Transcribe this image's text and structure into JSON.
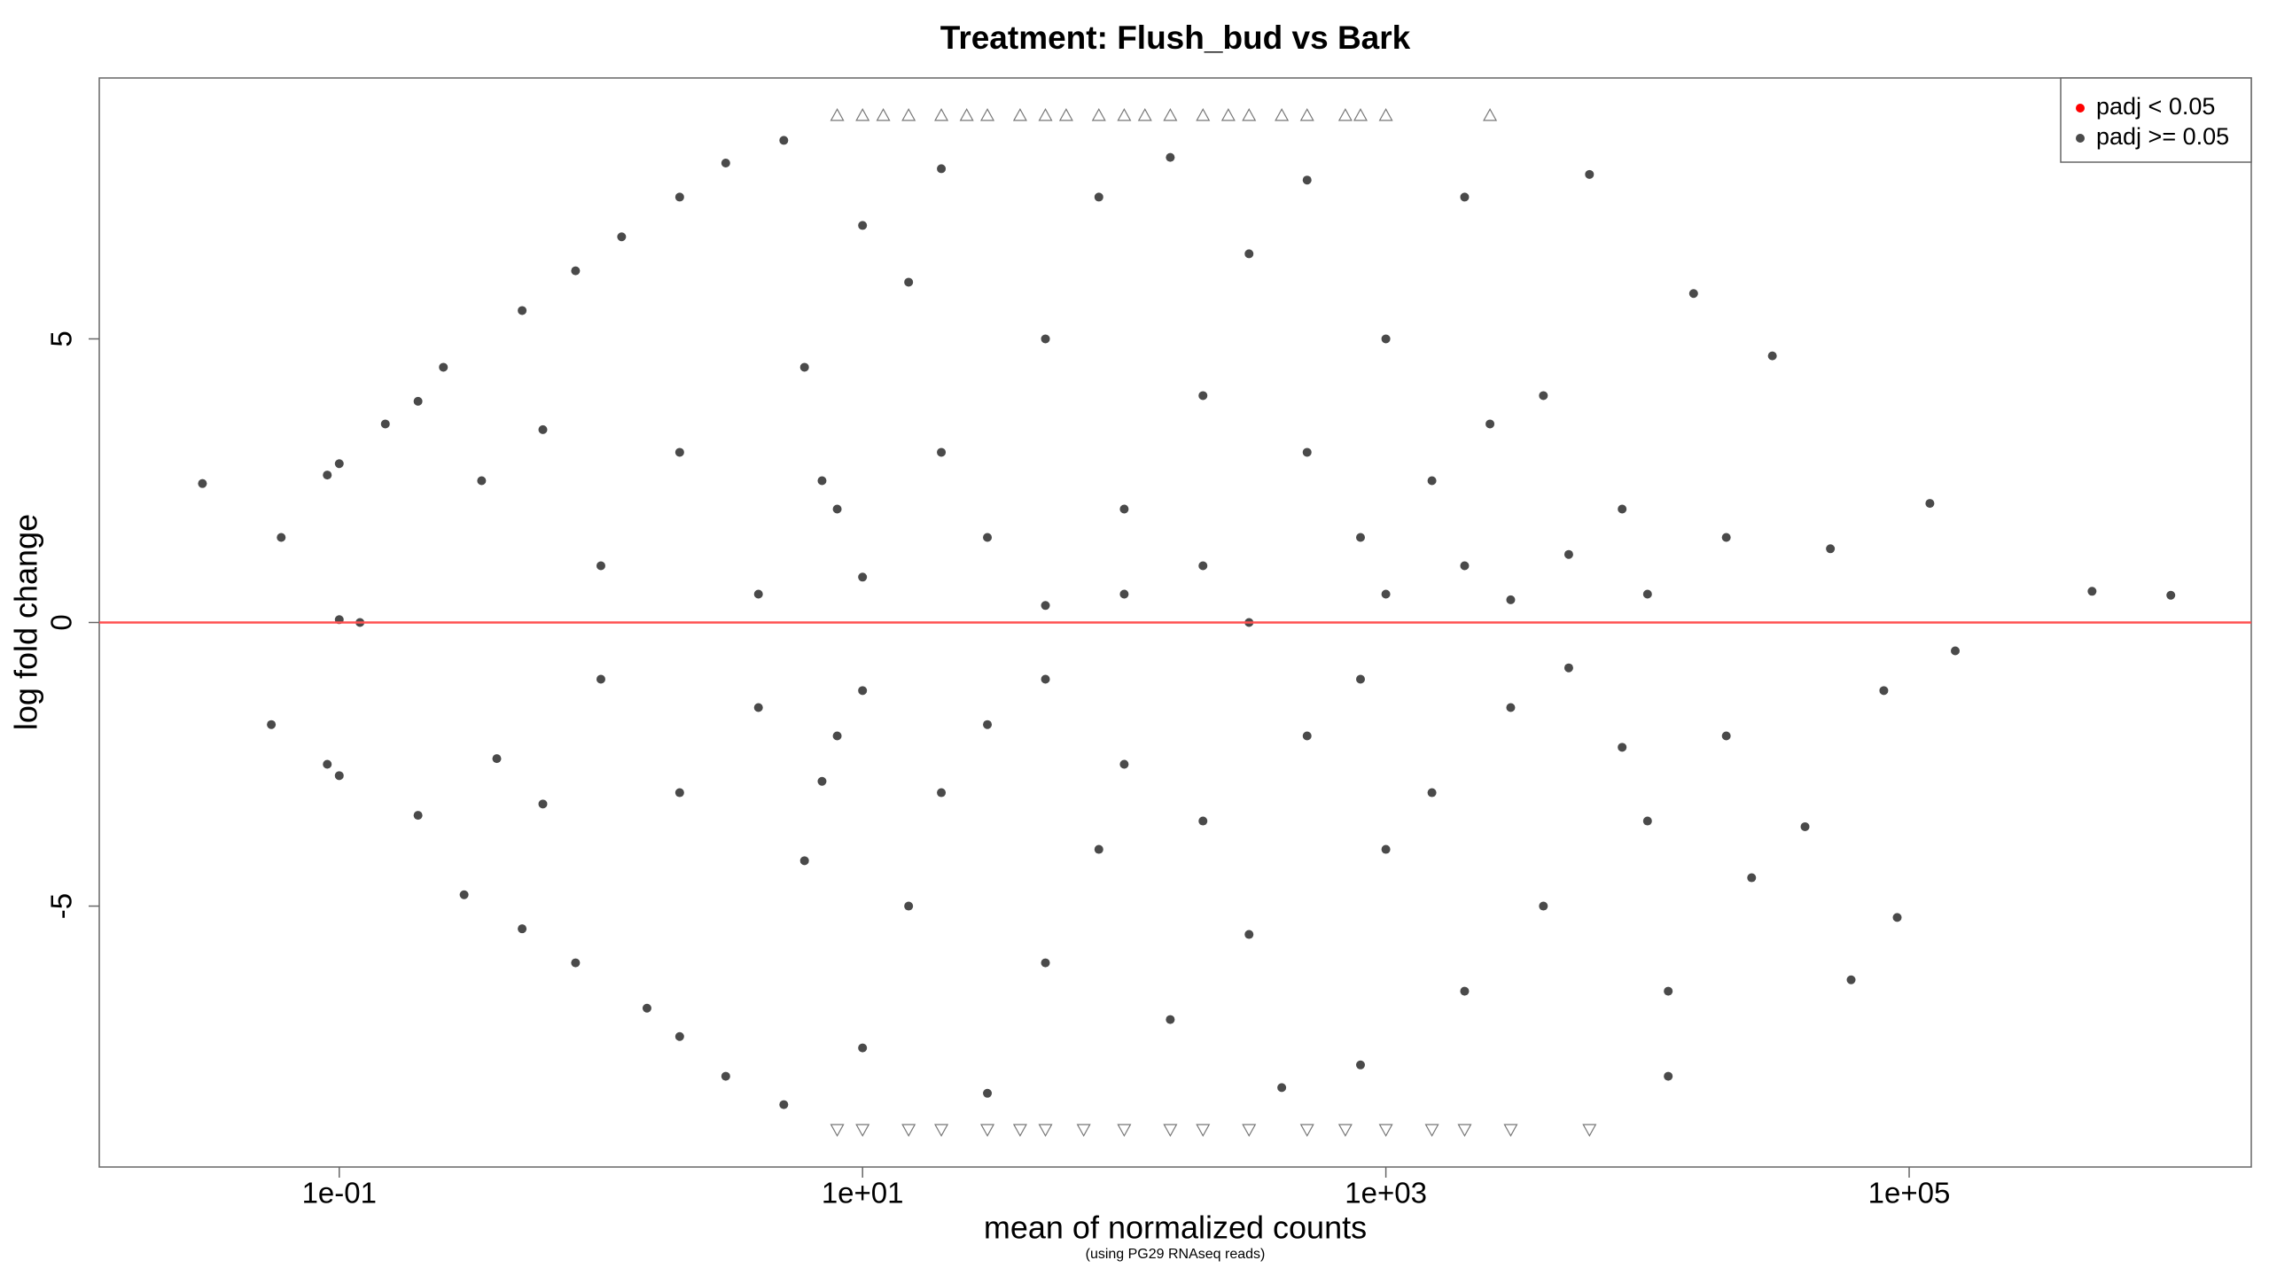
{
  "chart_data": {
    "type": "scatter",
    "title": "Treatment: Flush_bud vs Bark",
    "x_label": "mean of normalized counts",
    "x_sublabel": "(using PG29 RNAseq reads)",
    "y_label": "log fold change",
    "log_x": true,
    "xlim": [
      0.0121,
      2030000
    ],
    "ylim": [
      -9.6,
      9.6
    ],
    "xticks": [
      {
        "value": 0.1,
        "label": "1e-01"
      },
      {
        "value": 10,
        "label": "1e+01"
      },
      {
        "value": 1000,
        "label": "1e+03"
      },
      {
        "value": 100000,
        "label": "1e+05"
      }
    ],
    "yticks": [
      -5,
      0,
      5
    ],
    "hline": {
      "value": 0,
      "color": "#ff5050"
    },
    "legend": "top-right",
    "series": [
      {
        "name": "padj < 0.05",
        "color": "#ff0000",
        "x": [],
        "y": []
      },
      {
        "name": "padj >= 0.05",
        "color": "#4a4a4a",
        "x": [
          0.03,
          0.06,
          0.055,
          0.09,
          0.1,
          0.1,
          0.09,
          0.1,
          0.12,
          0.15,
          0.2,
          0.2,
          0.25,
          0.3,
          0.35,
          0.4,
          0.5,
          0.5,
          0.6,
          0.6,
          0.8,
          0.8,
          1,
          1,
          1.2,
          1.5,
          2,
          2,
          2,
          2,
          3,
          3,
          4,
          4,
          5,
          5,
          6,
          6,
          8,
          8,
          10,
          10,
          10,
          10,
          15,
          15,
          20,
          20,
          20,
          30,
          30,
          30,
          50,
          50,
          50,
          50,
          80,
          80,
          100,
          100,
          100,
          150,
          150,
          200,
          200,
          200,
          300,
          300,
          300,
          500,
          500,
          500,
          800,
          800,
          800,
          1000,
          1000,
          1000,
          1500,
          1500,
          2000,
          2000,
          2000,
          3000,
          3000,
          4000,
          4000,
          5000,
          5000,
          6000,
          8000,
          8000,
          10000,
          10000,
          12000,
          15000,
          20000,
          20000,
          25000,
          30000,
          40000,
          50000,
          60000,
          80000,
          90000,
          120000,
          150000,
          500000,
          1000000,
          12000,
          2500,
          400,
          7,
          7
        ],
        "y": [
          2.45,
          1.5,
          -1.8,
          2.6,
          2.8,
          -2.7,
          -2.5,
          0.05,
          0,
          3.5,
          3.9,
          -3.4,
          4.5,
          -4.8,
          2.5,
          -2.4,
          5.5,
          -5.4,
          3.4,
          -3.2,
          6.2,
          -6,
          1,
          -1,
          6.8,
          -6.8,
          7.5,
          -7.3,
          3,
          -3,
          8.1,
          -8,
          0.5,
          -1.5,
          8.5,
          -8.5,
          4.5,
          -4.2,
          2,
          -2,
          7,
          -7.5,
          0.8,
          -1.2,
          6,
          -5,
          3,
          -3,
          8,
          -8.3,
          1.5,
          -1.8,
          5,
          -6,
          0.3,
          -1,
          7.5,
          -4,
          2,
          -2.5,
          0.5,
          8.2,
          -7,
          4,
          -3.5,
          1,
          6.5,
          -5.5,
          0,
          3,
          -2,
          7.8,
          1.5,
          -1,
          -7.8,
          5,
          -4,
          0.5,
          2.5,
          -3,
          7.5,
          -6.5,
          1,
          0.4,
          -1.5,
          4,
          -5,
          1.2,
          -0.8,
          7.9,
          2,
          -2.2,
          0.5,
          -3.5,
          -8,
          5.8,
          1.5,
          -2,
          -4.5,
          4.7,
          -3.6,
          1.3,
          -6.3,
          -1.2,
          -5.2,
          2.1,
          -0.5,
          0.55,
          0.48,
          -6.5,
          3.5,
          -8.2,
          2.5,
          -2.8
        ]
      },
      {
        "marker": "triangle-up",
        "color": "#777777",
        "x": [
          8,
          10,
          12,
          15,
          20,
          25,
          30,
          40,
          50,
          60,
          80,
          100,
          120,
          150,
          200,
          250,
          300,
          400,
          500,
          700,
          800,
          1000,
          2500
        ],
        "y": [
          8.94,
          8.94,
          8.94,
          8.94,
          8.94,
          8.94,
          8.94,
          8.94,
          8.94,
          8.94,
          8.94,
          8.94,
          8.94,
          8.94,
          8.94,
          8.94,
          8.94,
          8.94,
          8.94,
          8.94,
          8.94,
          8.94,
          8.94
        ]
      },
      {
        "marker": "triangle-down",
        "color": "#777777",
        "x": [
          8,
          10,
          15,
          20,
          30,
          40,
          50,
          70,
          100,
          150,
          200,
          300,
          500,
          700,
          1000,
          1500,
          2000,
          3000,
          6000
        ],
        "y": [
          -8.94,
          -8.94,
          -8.94,
          -8.94,
          -8.94,
          -8.94,
          -8.94,
          -8.94,
          -8.94,
          -8.94,
          -8.94,
          -8.94,
          -8.94,
          -8.94,
          -8.94,
          -8.94,
          -8.94,
          -8.94,
          -8.94
        ]
      }
    ]
  }
}
